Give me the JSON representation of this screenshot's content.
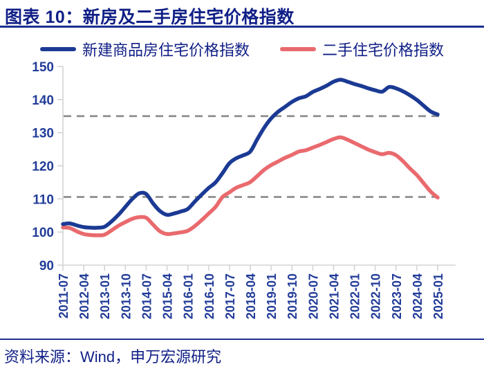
{
  "header": {
    "title": "图表 10：新房及二手房住宅价格指数"
  },
  "footer": {
    "source": "资料来源：Wind，申万宏源研究"
  },
  "colors": {
    "title_navy": "#101f86",
    "tick_label": "#223c98",
    "rule_navy": "#1b2f8f",
    "axis": "#d4d4d4",
    "dashed_ref": "#8e8e8e",
    "line_new_homes": "#1b3a94",
    "line_secondhand": "#e96a6e"
  },
  "chart_data": {
    "type": "line",
    "title": "图表 10：新房及二手房住宅价格指数",
    "xlabel": "",
    "ylabel": "",
    "ylim": [
      90,
      150
    ],
    "y_ticks": [
      90,
      100,
      110,
      120,
      130,
      140,
      150
    ],
    "grid": "off",
    "legend_position": "top",
    "reference_lines": [
      135.0,
      110.6
    ],
    "categories": [
      "2011-07",
      "2011-10",
      "2012-01",
      "2012-04",
      "2012-07",
      "2012-10",
      "2013-01",
      "2013-04",
      "2013-07",
      "2013-10",
      "2014-01",
      "2014-04",
      "2014-07",
      "2014-10",
      "2015-01",
      "2015-04",
      "2015-07",
      "2015-10",
      "2016-01",
      "2016-04",
      "2016-07",
      "2016-10",
      "2017-01",
      "2017-04",
      "2017-07",
      "2017-10",
      "2018-01",
      "2018-04",
      "2018-07",
      "2018-10",
      "2019-01",
      "2019-04",
      "2019-07",
      "2019-10",
      "2020-01",
      "2020-04",
      "2020-07",
      "2020-10",
      "2021-01",
      "2021-04",
      "2021-07",
      "2021-10",
      "2022-01",
      "2022-04",
      "2022-07",
      "2022-10",
      "2023-01",
      "2023-04",
      "2023-07",
      "2023-10",
      "2024-01",
      "2024-04",
      "2024-07",
      "2024-10",
      "2025-01"
    ],
    "x_tick_labels": [
      "2011-07",
      "2012-04",
      "2013-01",
      "2013-10",
      "2014-07",
      "2015-04",
      "2016-01",
      "2016-10",
      "2017-07",
      "2018-04",
      "2019-01",
      "2019-10",
      "2020-07",
      "2021-04",
      "2022-01",
      "2022-10",
      "2023-07",
      "2024-04",
      "2025-01"
    ],
    "series": [
      {
        "name": "新建商品房住宅价格指数",
        "color": "#1b3a94",
        "values": [
          102.4,
          102.6,
          102.0,
          101.5,
          101.3,
          101.3,
          101.6,
          103.2,
          105.2,
          107.6,
          110.0,
          111.7,
          111.5,
          108.6,
          106.3,
          105.2,
          105.6,
          106.2,
          107.0,
          109.2,
          111.3,
          113.3,
          115.0,
          117.8,
          120.8,
          122.3,
          123.2,
          124.3,
          128.0,
          131.5,
          134.3,
          136.3,
          137.8,
          139.3,
          140.4,
          141.0,
          142.3,
          143.2,
          144.2,
          145.4,
          146.0,
          145.4,
          144.7,
          144.1,
          143.4,
          142.8,
          142.4,
          143.8,
          143.4,
          142.5,
          141.3,
          139.9,
          138.1,
          136.4,
          135.5
        ]
      },
      {
        "name": "二手住宅价格指数",
        "color": "#e96a6e",
        "values": [
          101.4,
          101.2,
          100.2,
          99.4,
          99.1,
          99.0,
          99.2,
          100.5,
          101.9,
          103.0,
          104.0,
          104.5,
          104.3,
          102.2,
          100.2,
          99.4,
          99.6,
          99.9,
          100.4,
          101.8,
          103.6,
          105.6,
          107.6,
          110.6,
          112.0,
          113.4,
          114.2,
          115.1,
          116.9,
          118.8,
          120.2,
          121.3,
          122.4,
          123.3,
          124.3,
          124.7,
          125.5,
          126.3,
          127.2,
          128.1,
          128.6,
          127.9,
          126.9,
          125.9,
          124.9,
          124.1,
          123.5,
          123.9,
          123.2,
          121.4,
          119.2,
          117.2,
          114.7,
          112.2,
          110.4
        ]
      }
    ]
  }
}
